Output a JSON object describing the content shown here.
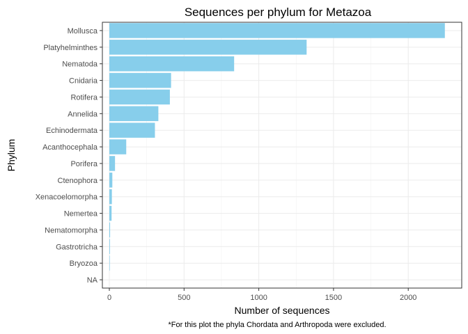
{
  "chart_data": {
    "type": "bar",
    "orientation": "horizontal",
    "title": "Sequences per phylum for Metazoa",
    "xlabel": "Number of sequences",
    "ylabel": "Phylum",
    "caption": "*For this plot the phyla Chordata and Arthropoda were excluded.",
    "xlim": [
      0,
      2250
    ],
    "xticks": [
      0,
      500,
      1000,
      1500,
      2000
    ],
    "bar_color": "#87CEEB",
    "grid": true,
    "categories": [
      "Mollusca",
      "Platyhelminthes",
      "Nematoda",
      "Cnidaria",
      "Rotifera",
      "Annelida",
      "Echinodermata",
      "Acanthocephala",
      "Porifera",
      "Ctenophora",
      "Xenacoelomorpha",
      "Nemertea",
      "Nematomorpha",
      "Gastrotricha",
      "Bryozoa",
      "NA"
    ],
    "values": [
      2245,
      1320,
      835,
      413,
      405,
      328,
      305,
      113,
      38,
      20,
      17,
      15,
      5,
      4,
      3,
      0
    ]
  }
}
